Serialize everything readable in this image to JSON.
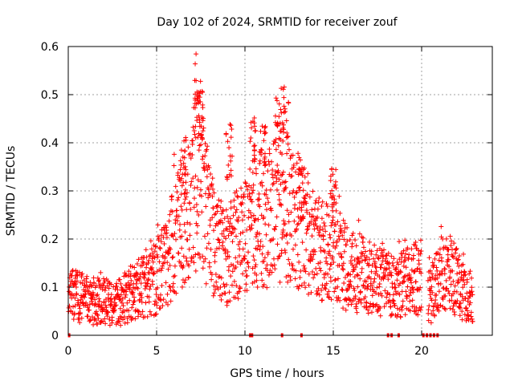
{
  "chart_data": {
    "type": "scatter",
    "title": "Day 102 of 2024, SRMTID for receiver zouf",
    "xlabel": "GPS time / hours",
    "ylabel": "SRMTID / TECUs",
    "xlim": [
      0,
      24
    ],
    "ylim": [
      0,
      0.6
    ],
    "xticks": [
      0,
      5,
      10,
      15,
      20
    ],
    "yticks": [
      0,
      0.1,
      0.2,
      0.3,
      0.4,
      0.5,
      0.6
    ],
    "xtick_labels": [
      "0",
      "5",
      "10",
      "15",
      "20"
    ],
    "ytick_labels": [
      "0",
      "0.1",
      "0.2",
      "0.3",
      "0.4",
      "0.5",
      "0.6"
    ],
    "grid": true,
    "marker": "+",
    "color": "#ff0000",
    "series": [
      {
        "name": "SRMTID",
        "trend": [
          [
            0.0,
            0.085
          ],
          [
            0.5,
            0.08
          ],
          [
            1.0,
            0.075
          ],
          [
            1.5,
            0.07
          ],
          [
            2.0,
            0.07
          ],
          [
            2.5,
            0.065
          ],
          [
            3.0,
            0.07
          ],
          [
            3.5,
            0.085
          ],
          [
            4.0,
            0.1
          ],
          [
            4.5,
            0.11
          ],
          [
            5.0,
            0.12
          ],
          [
            5.5,
            0.15
          ],
          [
            6.0,
            0.2
          ],
          [
            6.5,
            0.25
          ],
          [
            7.0,
            0.29
          ],
          [
            7.3,
            0.33
          ],
          [
            7.7,
            0.28
          ],
          [
            8.0,
            0.22
          ],
          [
            8.5,
            0.18
          ],
          [
            9.0,
            0.16
          ],
          [
            9.5,
            0.19
          ],
          [
            10.0,
            0.21
          ],
          [
            10.5,
            0.22
          ],
          [
            11.0,
            0.24
          ],
          [
            11.5,
            0.25
          ],
          [
            12.0,
            0.27
          ],
          [
            12.5,
            0.26
          ],
          [
            13.0,
            0.24
          ],
          [
            13.5,
            0.2
          ],
          [
            14.0,
            0.18
          ],
          [
            14.5,
            0.17
          ],
          [
            15.0,
            0.18
          ],
          [
            15.5,
            0.15
          ],
          [
            16.0,
            0.13
          ],
          [
            16.5,
            0.13
          ],
          [
            17.0,
            0.12
          ],
          [
            17.5,
            0.11
          ],
          [
            18.0,
            0.11
          ],
          [
            18.5,
            0.1
          ],
          [
            19.0,
            0.11
          ],
          [
            19.5,
            0.12
          ],
          [
            20.0,
            0.12
          ],
          [
            20.5,
            0.08
          ],
          [
            21.0,
            0.12
          ],
          [
            21.5,
            0.14
          ],
          [
            22.0,
            0.11
          ],
          [
            22.5,
            0.09
          ],
          [
            23.0,
            0.07
          ]
        ],
        "peaks": [
          [
            7.3,
            0.53
          ],
          [
            7.45,
            0.51
          ],
          [
            10.5,
            0.46
          ],
          [
            11.9,
            0.52
          ],
          [
            12.3,
            0.52
          ],
          [
            9.1,
            0.44
          ],
          [
            15.0,
            0.35
          ],
          [
            13.2,
            0.36
          ],
          [
            6.5,
            0.4
          ],
          [
            11.0,
            0.44
          ]
        ],
        "zero_points": [
          0.05,
          10.3,
          10.4,
          12.1,
          13.2,
          18.1,
          18.3,
          18.7,
          20.1,
          20.3,
          20.5,
          20.7,
          20.9
        ]
      }
    ]
  }
}
